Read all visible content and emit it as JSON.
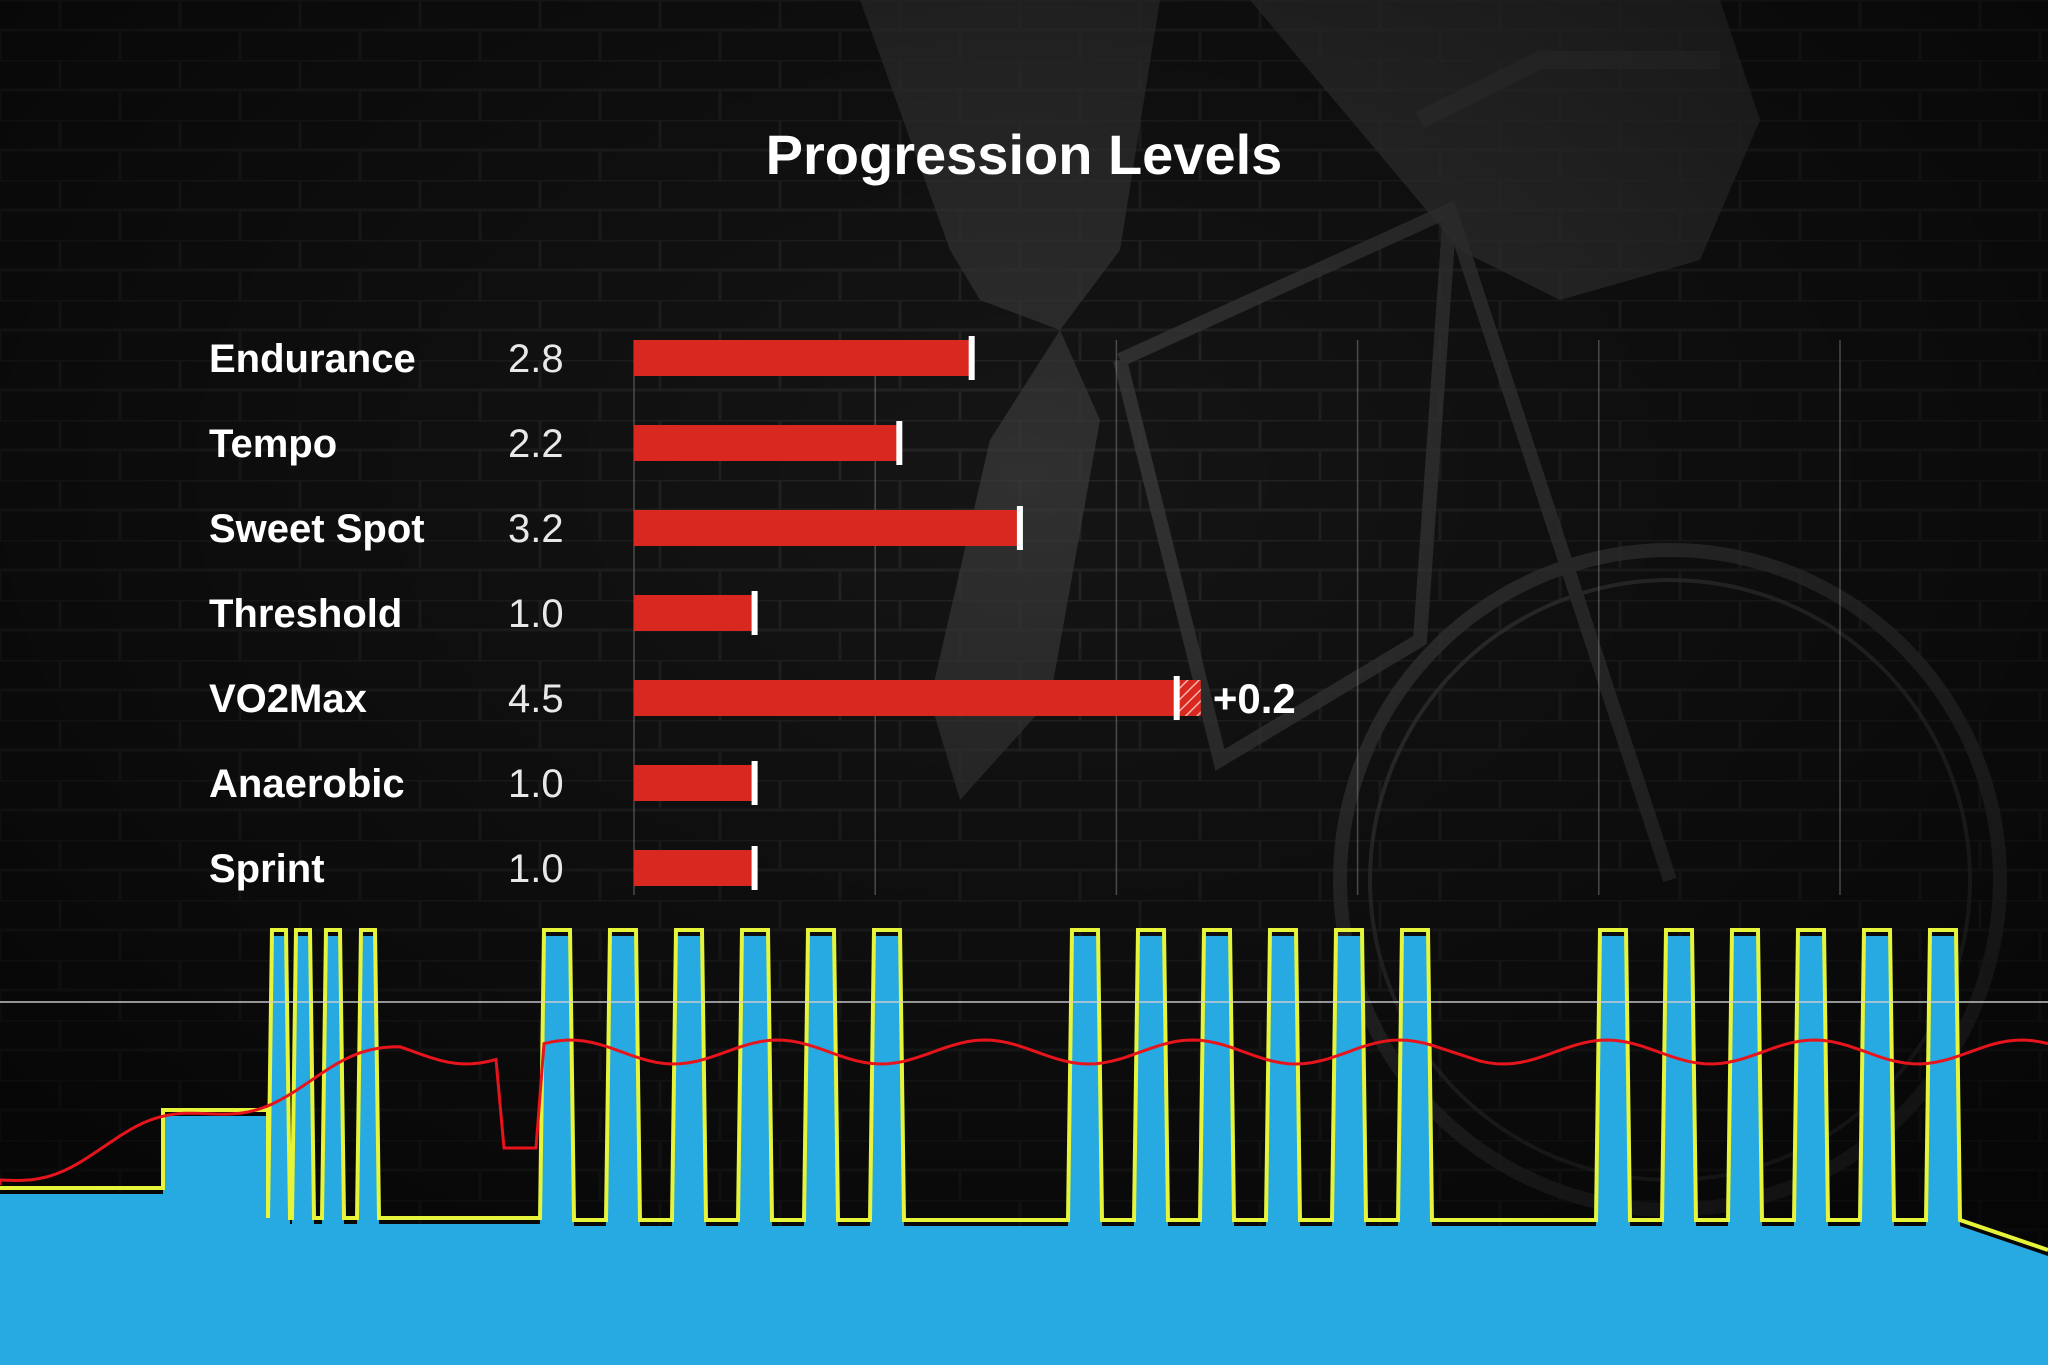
{
  "colors": {
    "bar": "#d8281f",
    "marker": "#ffffff",
    "gridline": "#7a7a7a",
    "power_fill": "#27a9e1",
    "target_line": "#e6f53a",
    "heart_rate": "#e8141c"
  },
  "chart_data": {
    "type": "bar",
    "orientation": "horizontal",
    "title": "Progression Levels",
    "categories": [
      "Endurance",
      "Tempo",
      "Sweet Spot",
      "Threshold",
      "VO2Max",
      "Anaerobic",
      "Sprint"
    ],
    "values": [
      2.8,
      2.2,
      3.2,
      1.0,
      4.5,
      1.0,
      1.0
    ],
    "value_labels": [
      "2.8",
      "2.2",
      "3.2",
      "1.0",
      "4.5",
      "1.0",
      "1.0"
    ],
    "increase": {
      "category": "VO2Max",
      "value": 0.2,
      "label": "+0.2"
    },
    "xlim": [
      0,
      10
    ],
    "grid": true
  }
}
